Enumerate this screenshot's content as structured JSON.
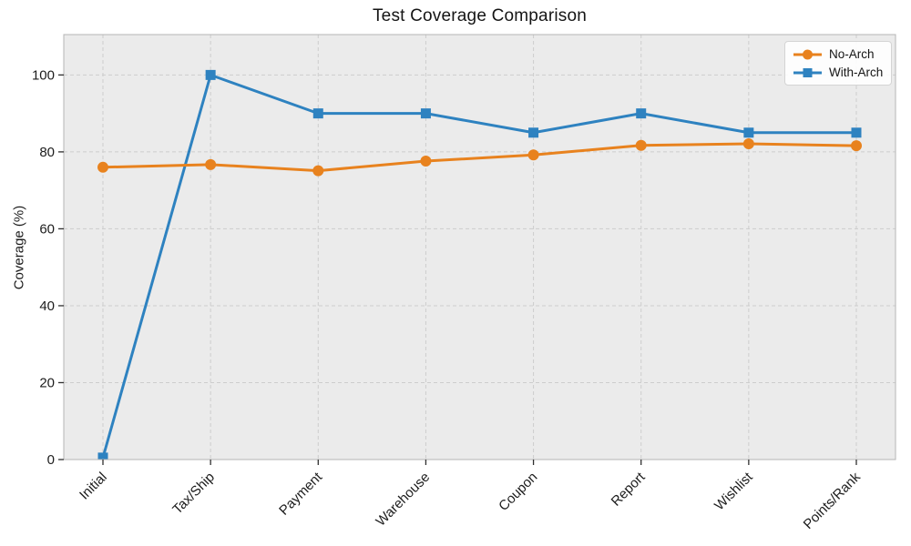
{
  "chart_data": {
    "type": "line",
    "title": "Test Coverage Comparison",
    "xlabel": "",
    "ylabel": "Coverage (%)",
    "categories": [
      "Initial",
      "Tax/Ship",
      "Payment",
      "Warehouse",
      "Coupon",
      "Report",
      "Wishlist",
      "Points/Rank"
    ],
    "series": [
      {
        "name": "No-Arch",
        "marker": "circle",
        "color": "#e8821e",
        "values": [
          76.0,
          76.7,
          75.1,
          77.6,
          79.2,
          81.7,
          82.1,
          81.6
        ]
      },
      {
        "name": "With-Arch",
        "marker": "square",
        "color": "#2e82c0",
        "values": [
          0.5,
          100,
          90,
          90,
          85,
          90,
          85,
          85
        ]
      }
    ],
    "yticks": [
      0,
      20,
      40,
      60,
      80,
      100
    ],
    "ylim": [
      0,
      110.5
    ],
    "grid": true,
    "grid_style": "dashed",
    "legend_position": "upper right",
    "colors": {
      "plot_background": "#ebebeb",
      "figure_background": "#ffffff",
      "gridline": "#cdcdcd",
      "spine": "#b5b5b5",
      "tick_mark": "#2f2f2f",
      "tick_text": "#1c1c1c"
    }
  }
}
